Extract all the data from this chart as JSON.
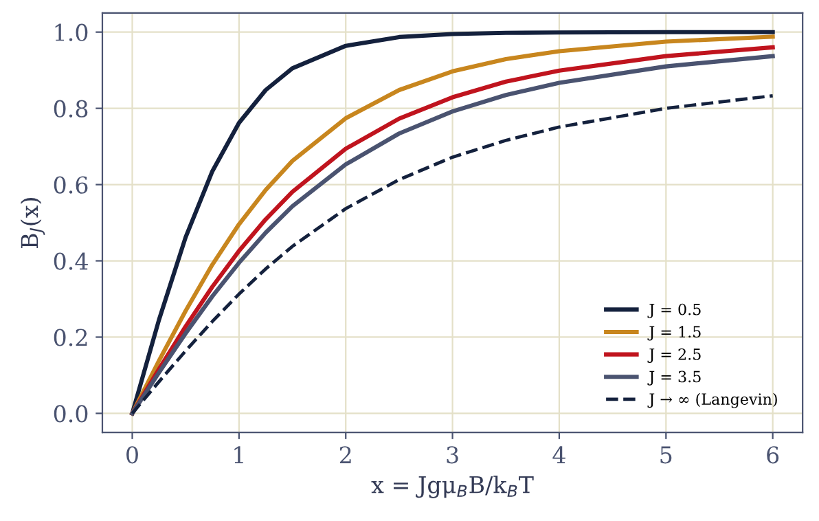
{
  "chart_data": {
    "type": "line",
    "xlabel": "x = Jgμ$_{B}$B/k$_{B}$T",
    "ylabel": "B$_{J}$(x)",
    "x": [
      0,
      0.25,
      0.5,
      0.75,
      1,
      1.25,
      1.5,
      2,
      2.5,
      3,
      3.5,
      4,
      5,
      6
    ],
    "series": [
      {
        "name": "J = 0.5",
        "color": "#14213d",
        "values": [
          0,
          0.245,
          0.462,
          0.635,
          0.762,
          0.848,
          0.905,
          0.964,
          0.987,
          0.995,
          0.998,
          0.999,
          1.0,
          1.0
        ]
      },
      {
        "name": "J = 1.5",
        "color": "#c8861e",
        "values": [
          0,
          0.138,
          0.269,
          0.39,
          0.496,
          0.586,
          0.662,
          0.774,
          0.848,
          0.897,
          0.929,
          0.95,
          0.975,
          0.988
        ]
      },
      {
        "name": "J = 2.5",
        "color": "#c0141e",
        "values": [
          0,
          0.116,
          0.228,
          0.332,
          0.426,
          0.509,
          0.581,
          0.694,
          0.773,
          0.829,
          0.87,
          0.899,
          0.937,
          0.96
        ]
      },
      {
        "name": "J = 3.5",
        "color": "#4a5370",
        "values": [
          0,
          0.107,
          0.21,
          0.307,
          0.395,
          0.474,
          0.543,
          0.653,
          0.734,
          0.792,
          0.835,
          0.867,
          0.91,
          0.937
        ]
      },
      {
        "name": "J → ∞ (Langevin)",
        "color": "#14213d",
        "line_style": "dashed",
        "values": [
          0,
          0.083,
          0.164,
          0.241,
          0.313,
          0.379,
          0.438,
          0.537,
          0.613,
          0.672,
          0.716,
          0.751,
          0.8,
          0.833
        ]
      }
    ],
    "xlim": [
      -0.28,
      6.28
    ],
    "ylim": [
      -0.05,
      1.05
    ],
    "xticks": [
      0,
      1,
      2,
      3,
      4,
      5,
      6
    ],
    "yticks": [
      {
        "value": 0,
        "label": "0.0"
      },
      0.2,
      0.4,
      0.6,
      0.8,
      {
        "value": 1,
        "label": "1.0"
      }
    ],
    "grid": true,
    "legend": "lower right"
  }
}
